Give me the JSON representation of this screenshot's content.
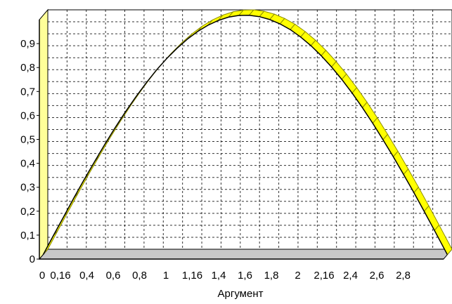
{
  "chart_data": {
    "type": "area",
    "title": "",
    "xlabel": "Аргумент",
    "ylabel": "",
    "xlim": [
      0,
      3.14
    ],
    "ylim": [
      0,
      1
    ],
    "grid": true,
    "legend": "none",
    "x_tick_labels": [
      "0",
      "0,16",
      "0,4",
      "0,6",
      "0,8",
      "1",
      "1,16",
      "1,4",
      "1,6",
      "1,8",
      "2",
      "2,16",
      "2,4",
      "2,6",
      "2,8"
    ],
    "y_tick_labels": [
      "0",
      "0,1",
      "0,2",
      "0,3",
      "0,4",
      "0,5",
      "0,6",
      "0,7",
      "0,8",
      "0,9"
    ],
    "y_tick_values": [
      0,
      0.1,
      0.2,
      0.3,
      0.4,
      0.5,
      0.6,
      0.7,
      0.8,
      0.9
    ],
    "series": [
      {
        "values_x": [
          0,
          0.08,
          0.16,
          0.24,
          0.32,
          0.4,
          0.48,
          0.56,
          0.64,
          0.72,
          0.8,
          0.88,
          0.96,
          1.04,
          1.12,
          1.2,
          1.28,
          1.36,
          1.44,
          1.52,
          1.6,
          1.68,
          1.76,
          1.84,
          1.92,
          2.0,
          2.08,
          2.16,
          2.24,
          2.32,
          2.4,
          2.48,
          2.56,
          2.64,
          2.72,
          2.8,
          2.88,
          2.96,
          3.04,
          3.14
        ],
        "values_y": [
          0.0,
          0.08,
          0.159,
          0.238,
          0.315,
          0.389,
          0.462,
          0.531,
          0.597,
          0.659,
          0.717,
          0.771,
          0.819,
          0.862,
          0.9,
          0.932,
          0.958,
          0.978,
          0.992,
          0.999,
          1.0,
          0.994,
          0.982,
          0.964,
          0.94,
          0.909,
          0.873,
          0.831,
          0.784,
          0.732,
          0.675,
          0.614,
          0.549,
          0.48,
          0.409,
          0.335,
          0.259,
          0.181,
          0.101,
          0.0
        ]
      }
    ],
    "colors": {
      "fill": "#ffff00",
      "fill_side": "#8c8c00",
      "back_wall": "#ffffff",
      "left_wall": "#ffff99",
      "floor": "#c8c8c8",
      "grid": "#000000"
    }
  }
}
